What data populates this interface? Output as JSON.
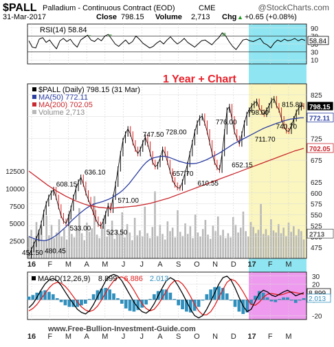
{
  "header": {
    "symbol": "$PALL",
    "name": "Palladium - Continuous Contract (EOD)",
    "exchange": "CME",
    "date": "31-Mar-2017",
    "close_label": "Close",
    "close_value": "798.15",
    "volume_label": "Volume",
    "volume_value": "2,713",
    "chg_label": "Chg",
    "chg_value": "+0.65 (+0.08%)",
    "chg_arrow": "▲",
    "source": "@StockCharts.com"
  },
  "annotation": {
    "text": "1 Year + Chart",
    "color": "#e8202a"
  },
  "watermark": "www.Free-Bullion-Investment-Guide.com",
  "colors": {
    "price": "#000000",
    "up_bar": "#000000",
    "down_bar": "#e01b1b",
    "ma50": "#2b3da0",
    "ma200": "#c8282e",
    "volume": "#b8b8b8",
    "highlight_rsi": "#8fe6f2",
    "highlight_price": "#fbf6bf",
    "highlight_macd": "#ee9aee",
    "rsi_line": "#000000",
    "macd_line": "#000000",
    "macd_signal": "#e02020",
    "macd_hist": "#2f8fbd"
  },
  "chart_data": [
    {
      "type": "line",
      "panel": "rsi",
      "legend": [
        {
          "text": "RSI(14) 58.84",
          "color": "#000000"
        }
      ],
      "ylim": [
        0,
        100
      ],
      "yticks": [
        "90",
        "70",
        "50",
        "30",
        "10"
      ],
      "marker_label": "58.84",
      "overbought_level": 70,
      "oversold_level": 30,
      "series": [
        {
          "name": "RSI(14)",
          "values": [
            58,
            42,
            40,
            62,
            66,
            54,
            60,
            48,
            38,
            58,
            64,
            56,
            62,
            50,
            42,
            60,
            66,
            72,
            60,
            56,
            64,
            58,
            70,
            74,
            62,
            50,
            44,
            52,
            60,
            50,
            56,
            70,
            62,
            52,
            46,
            40,
            44,
            52,
            58,
            50,
            60,
            68,
            58,
            50,
            56,
            64,
            54,
            48,
            42,
            50,
            58,
            60,
            54,
            48,
            58,
            66,
            78,
            70,
            56,
            44,
            36,
            48,
            60,
            62,
            58,
            56,
            60,
            64,
            52,
            48,
            40,
            52,
            60,
            56,
            62,
            58,
            60,
            64,
            58,
            62,
            58.84
          ]
        }
      ]
    },
    {
      "type": "line",
      "panel": "price",
      "title": "$PALL (Daily) 798.15 (31 Mar)",
      "legend": [
        {
          "text": "$PALL (Daily) 798.15 (31 Mar)",
          "color": "#000000"
        },
        {
          "text": "MA(50) 772.11",
          "color": "#2b3da0"
        },
        {
          "text": "MA(200) 702.05",
          "color": "#c8282e"
        },
        {
          "text": "Volume 2,713",
          "color": "#8a8a8a"
        }
      ],
      "ylim": [
        450,
        850
      ],
      "yticks": [
        "825",
        "775",
        "725",
        "675",
        "625",
        "600",
        "575",
        "550",
        "525",
        "500",
        "475"
      ],
      "volume_ylim": [
        0,
        25000
      ],
      "volume_ticks": [
        "12500",
        "10000",
        "7500",
        "5000",
        "2500"
      ],
      "end_labels": [
        {
          "text": "798.15",
          "value": 798.15,
          "style": "box-dark"
        },
        {
          "text": "772.11",
          "value": 772.11,
          "style": "box-blue"
        },
        {
          "text": "702.05",
          "value": 702.05,
          "style": "box-red"
        },
        {
          "text": "2713",
          "value": 2713,
          "style": "box-volume"
        }
      ],
      "price_labels": [
        {
          "text": "451.50",
          "x": 0.5,
          "y": 451.5
        },
        {
          "text": "480.45",
          "x": 5.5,
          "y": 480.45
        },
        {
          "text": "608.15",
          "x": 8,
          "y": 608.15
        },
        {
          "text": "533.00",
          "x": 11,
          "y": 533
        },
        {
          "text": "636.10",
          "x": 14.2,
          "y": 636.1
        },
        {
          "text": "523.50",
          "x": 19,
          "y": 523.5
        },
        {
          "text": "571.00",
          "x": 21.5,
          "y": 571
        },
        {
          "text": "747.50",
          "x": 27,
          "y": 747.5
        },
        {
          "text": "728.00",
          "x": 32,
          "y": 728
        },
        {
          "text": "657.70",
          "x": 33.5,
          "y": 657.7
        },
        {
          "text": "610.55",
          "x": 39,
          "y": 610.55
        },
        {
          "text": "776.00",
          "x": 43,
          "y": 776
        },
        {
          "text": "652.15",
          "x": 46.5,
          "y": 652.15
        },
        {
          "text": "798.00",
          "x": 50,
          "y": 798
        },
        {
          "text": "711.70",
          "x": 51.5,
          "y": 711.7
        },
        {
          "text": "815.80",
          "x": 57.5,
          "y": 815.8
        },
        {
          "text": "740.70",
          "x": 56.2,
          "y": 740.7
        }
      ],
      "series": [
        {
          "name": "$PALL",
          "values": [
            455,
            470,
            482,
            495,
            510,
            530,
            555,
            575,
            590,
            600,
            608,
            590,
            568,
            548,
            535,
            530,
            545,
            565,
            590,
            610,
            625,
            636,
            620,
            600,
            585,
            570,
            555,
            540,
            528,
            524,
            535,
            552,
            571,
            560,
            590,
            620,
            655,
            690,
            720,
            735,
            747,
            735,
            715,
            700,
            690,
            700,
            715,
            728,
            712,
            690,
            670,
            660,
            665,
            680,
            700,
            690,
            670,
            650,
            630,
            618,
            612,
            611,
            625,
            645,
            665,
            690,
            715,
            740,
            760,
            772,
            776,
            760,
            740,
            715,
            690,
            670,
            658,
            652,
            690,
            740,
            790,
            798,
            770,
            740,
            725,
            712,
            735,
            760,
            780,
            790,
            800,
            805,
            810,
            795,
            785,
            780,
            790,
            800,
            812,
            816,
            800,
            790,
            770,
            752,
            742,
            741,
            755,
            770,
            785,
            795,
            800,
            798.15
          ]
        },
        {
          "name": "MA(50)",
          "values": [
            500,
            497,
            494,
            492,
            491,
            491,
            493,
            497,
            502,
            508,
            515,
            522,
            530,
            538,
            545,
            552,
            558,
            564,
            569,
            573,
            576,
            578,
            580,
            583,
            586,
            590,
            595,
            600,
            606,
            614,
            622,
            632,
            642,
            652,
            662,
            670,
            676,
            680,
            682,
            683,
            684,
            683,
            681,
            678,
            675,
            672,
            670,
            668,
            667,
            667,
            668,
            670,
            673,
            676,
            680,
            684,
            688,
            692,
            697,
            702,
            707,
            712,
            716,
            720,
            724,
            728,
            732,
            736,
            740,
            744,
            748,
            751,
            754,
            757,
            760,
            762,
            765,
            767,
            769,
            770,
            771,
            772,
            772.11
          ]
        },
        {
          "name": "MA(200)",
          "values": [
            650,
            642,
            634,
            626,
            618,
            611,
            604,
            598,
            592,
            587,
            582,
            578,
            574,
            571,
            569,
            567,
            566,
            565,
            565,
            566,
            567,
            568,
            569,
            570,
            572,
            574,
            576,
            579,
            582,
            585,
            588,
            592,
            596,
            600,
            604,
            608,
            612,
            616,
            620,
            624,
            628,
            632,
            636,
            640,
            644,
            648,
            652,
            656,
            660,
            664,
            668,
            672,
            676,
            680,
            684,
            688,
            692,
            696,
            699,
            702.05
          ]
        },
        {
          "name": "Volume",
          "values": [
            3200,
            4100,
            2800,
            5200,
            3900,
            4600,
            2500,
            6100,
            3300,
            4800,
            2900,
            3700,
            5600,
            3100,
            4200,
            2700,
            6800,
            3500,
            3000,
            4400,
            7200,
            3600,
            2600,
            5100,
            3800,
            4300,
            8900,
            3400,
            2900,
            4700,
            6200,
            3100,
            3900,
            5400,
            2800,
            4100,
            3500,
            6600,
            3000,
            4900,
            3700,
            2600,
            5800,
            3300,
            4000,
            3100,
            7400,
            3600,
            2900,
            4500,
            9600,
            3200,
            4800,
            3500,
            2700,
            5300,
            3900,
            4400,
            3000,
            6900,
            3800,
            3200,
            5000,
            3500,
            4600,
            2900,
            6300,
            3700,
            3100,
            4200,
            5500,
            3400,
            2800,
            4700,
            3900,
            6000,
            3300,
            4100,
            2900,
            3600,
            3000,
            5900,
            4800,
            3700,
            4400,
            6700,
            3900,
            3100,
            5200,
            4500,
            3600,
            4100,
            7800,
            3500,
            4200,
            3300,
            5600,
            4000,
            3700,
            4900,
            3600,
            4400,
            3200,
            5100,
            3800,
            4600,
            3300,
            4200,
            3900,
            2713
          ]
        }
      ]
    },
    {
      "type": "line",
      "panel": "macd",
      "legend": [
        {
          "text": "MACD(12,26,9)",
          "color": "#000000"
        },
        {
          "text": "8.899",
          "color": "#000000"
        },
        {
          "text": "6.886",
          "color": "#e02020"
        },
        {
          "text": "2.013",
          "color": "#2f8fbd"
        }
      ],
      "ylim": [
        -25,
        35
      ],
      "yticks": [
        "30",
        "20",
        "0",
        "-20"
      ],
      "end_labels": [
        {
          "text": "8.899",
          "value": 8.899
        },
        {
          "text": "2.013",
          "value": 2.013
        }
      ],
      "series": [
        {
          "name": "MACD",
          "values": [
            -10,
            -5,
            3,
            12,
            20,
            25,
            27,
            24,
            18,
            10,
            2,
            -5,
            -12,
            -16,
            -18,
            -14,
            -6,
            4,
            14,
            24,
            30,
            32,
            30,
            24,
            15,
            6,
            -3,
            -10,
            -15,
            -17,
            -13,
            -5,
            5,
            15,
            24,
            28,
            25,
            17,
            8,
            -2,
            -12,
            -20,
            -23,
            -20,
            -12,
            -2,
            9,
            20,
            28,
            30,
            25,
            15,
            3,
            -8,
            -15,
            -12,
            -2,
            8,
            12,
            10,
            6,
            4,
            7,
            10,
            12,
            9,
            5,
            7,
            8.899
          ]
        },
        {
          "name": "Signal",
          "values": [
            -14,
            -11,
            -6,
            1,
            8,
            15,
            20,
            22,
            21,
            17,
            11,
            4,
            -3,
            -9,
            -13,
            -15,
            -13,
            -8,
            0,
            9,
            17,
            24,
            28,
            29,
            26,
            20,
            12,
            3,
            -5,
            -11,
            -14,
            -12,
            -6,
            2,
            11,
            19,
            24,
            24,
            20,
            13,
            4,
            -6,
            -14,
            -19,
            -19,
            -15,
            -7,
            3,
            13,
            22,
            26,
            24,
            18,
            10,
            1,
            -6,
            -7,
            -3,
            3,
            7,
            8,
            7,
            6,
            7,
            9,
            10,
            9,
            8,
            6.886
          ]
        },
        {
          "name": "Histogram",
          "values": [
            4,
            6,
            9,
            11,
            12,
            10,
            7,
            2,
            -3,
            -7,
            -9,
            -9,
            -9,
            -7,
            -5,
            1,
            7,
            12,
            14,
            15,
            13,
            8,
            2,
            -5,
            -11,
            -14,
            -15,
            -13,
            -10,
            -6,
            1,
            7,
            11,
            13,
            13,
            9,
            1,
            -7,
            -12,
            -15,
            -16,
            -14,
            -9,
            -1,
            7,
            13,
            16,
            17,
            15,
            8,
            -1,
            -9,
            -15,
            -18,
            -16,
            -6,
            5,
            11,
            9,
            3,
            -2,
            -3,
            1,
            3,
            3,
            -1,
            -4,
            -1,
            2.013
          ]
        }
      ]
    }
  ],
  "xaxis": {
    "labels": [
      {
        "text": "16",
        "bold": true
      },
      {
        "text": "F",
        "bold": false
      },
      {
        "text": "M",
        "bold": false
      },
      {
        "text": "A",
        "bold": false
      },
      {
        "text": "M",
        "bold": false
      },
      {
        "text": "J",
        "bold": false
      },
      {
        "text": "J",
        "bold": false
      },
      {
        "text": "A",
        "bold": false
      },
      {
        "text": "S",
        "bold": false
      },
      {
        "text": "O",
        "bold": false
      },
      {
        "text": "N",
        "bold": false
      },
      {
        "text": "D",
        "bold": false
      },
      {
        "text": "17",
        "bold": true
      },
      {
        "text": "F",
        "bold": false
      },
      {
        "text": "M",
        "bold": false
      }
    ]
  }
}
